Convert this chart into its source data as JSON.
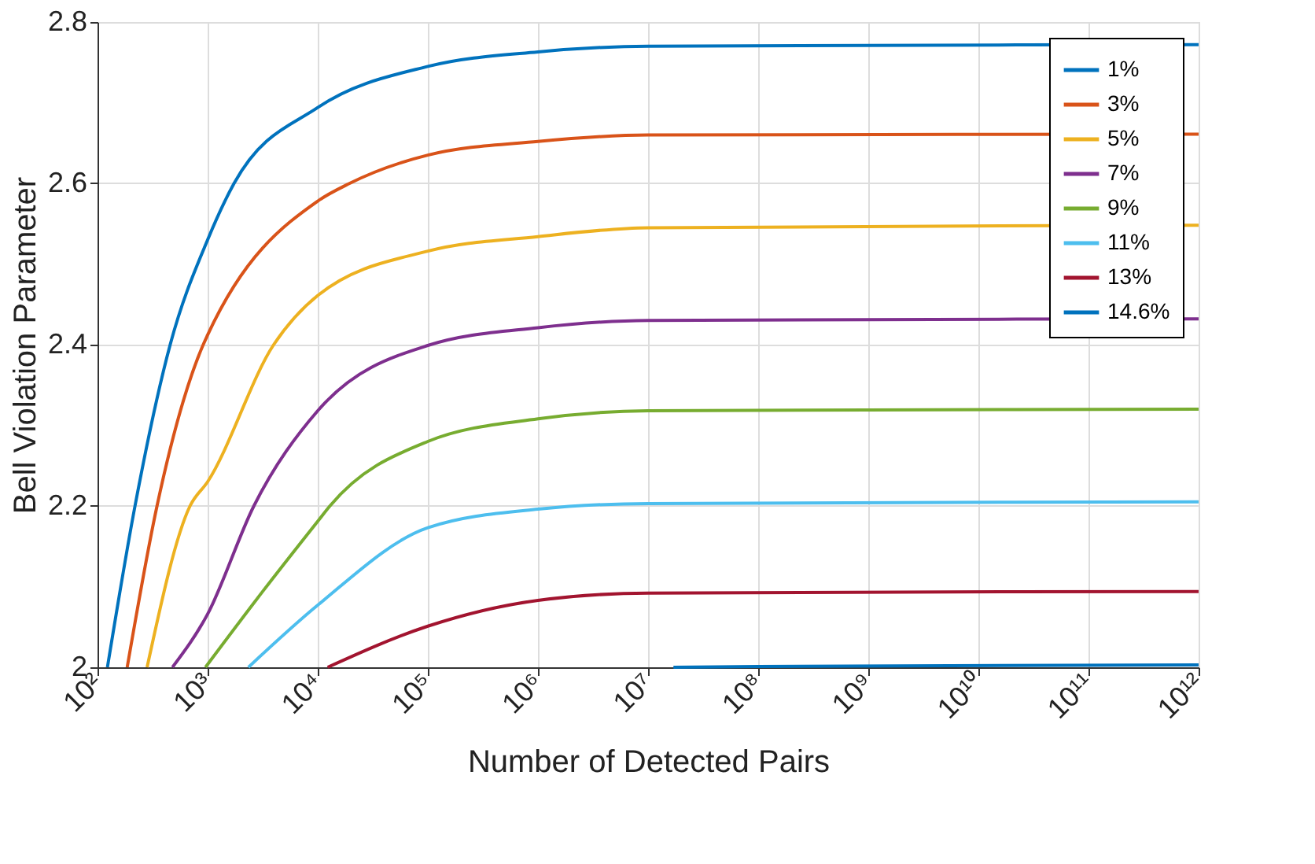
{
  "chart_data": {
    "type": "line",
    "xlabel": "Number of Detected Pairs",
    "ylabel": "Bell Violation Parameter",
    "log": "x",
    "grid": true,
    "legend": "top right",
    "line_style": "solid",
    "marker": "none",
    "xlim": [
      100,
      1000000000000.0
    ],
    "ylim": [
      2,
      2.8
    ],
    "xticks": [
      {
        "value": 100,
        "label": "10²"
      },
      {
        "value": 1000,
        "label": "10³"
      },
      {
        "value": 10000.0,
        "label": "10⁴"
      },
      {
        "value": 100000.0,
        "label": "10⁵"
      },
      {
        "value": 1000000.0,
        "label": "10⁶"
      },
      {
        "value": 10000000.0,
        "label": "10⁷"
      },
      {
        "value": 100000000.0,
        "label": "10⁸"
      },
      {
        "value": 1000000000.0,
        "label": "10⁹"
      },
      {
        "value": 10000000000.0,
        "label": "10¹⁰"
      },
      {
        "value": 100000000000.0,
        "label": "10¹¹"
      },
      {
        "value": 1000000000000.0,
        "label": "10¹²"
      }
    ],
    "yticks": [
      2,
      2.2,
      2.4,
      2.6,
      2.8
    ],
    "series": [
      {
        "name": "1%",
        "color": "#0072bd",
        "x": [
          123,
          219,
          457,
          1000,
          1738,
          10000.0,
          100000.0,
          1000000.0,
          10000000.0,
          1000000000000.0
        ],
        "values": [
          2.0,
          2.2,
          2.4,
          2.53,
          2.6,
          2.694,
          2.745,
          2.763,
          2.77,
          2.772
        ]
      },
      {
        "name": "3%",
        "color": "#d95319",
        "x": [
          186,
          347,
          912,
          1000,
          10000.0,
          19500,
          100000.0,
          1000000.0,
          10000000.0,
          1000000000000.0
        ],
        "values": [
          2.0,
          2.2,
          2.4,
          2.412,
          2.578,
          2.6,
          2.635,
          2.652,
          2.66,
          2.661
        ]
      },
      {
        "name": "5%",
        "color": "#edb120",
        "x": [
          282,
          692,
          1000,
          3981,
          10000.0,
          100000.0,
          1000000.0,
          10000000.0,
          1000000000000.0
        ],
        "values": [
          2.0,
          2.2,
          2.23,
          2.4,
          2.461,
          2.516,
          2.534,
          2.545,
          2.548
        ]
      },
      {
        "name": "7%",
        "color": "#7e2f8e",
        "x": [
          479,
          1000,
          2630,
          10000.0,
          100000.0,
          1000000.0,
          10000000.0,
          1000000000000.0
        ],
        "values": [
          2.0,
          2.066,
          2.2,
          2.318,
          2.399,
          2.421,
          2.43,
          2.432
        ]
      },
      {
        "name": "9%",
        "color": "#77ac30",
        "x": [
          955,
          3162,
          10000.0,
          12900,
          100000.0,
          1000000.0,
          10000000.0,
          1000000000000.0
        ],
        "values": [
          2.0,
          2.094,
          2.181,
          2.2,
          2.28,
          2.308,
          2.318,
          2.32
        ]
      },
      {
        "name": "11%",
        "color": "#4dbeee",
        "x": [
          2344,
          10000.0,
          100000.0,
          1000000.0,
          10000000.0,
          1000000000000.0
        ],
        "values": [
          2.0,
          2.077,
          2.173,
          2.196,
          2.203,
          2.205
        ]
      },
      {
        "name": "13%",
        "color": "#a2142f",
        "x": [
          12300,
          100000.0,
          1000000.0,
          10000000.0,
          1000000000000.0
        ],
        "values": [
          2.0,
          2.051,
          2.083,
          2.092,
          2.094
        ]
      },
      {
        "name": "14.6%",
        "color": "#0072bd",
        "x": [
          17000000.0,
          100000000.0,
          1000000000000.0
        ],
        "values": [
          2.0,
          2.001,
          2.003
        ]
      }
    ]
  }
}
